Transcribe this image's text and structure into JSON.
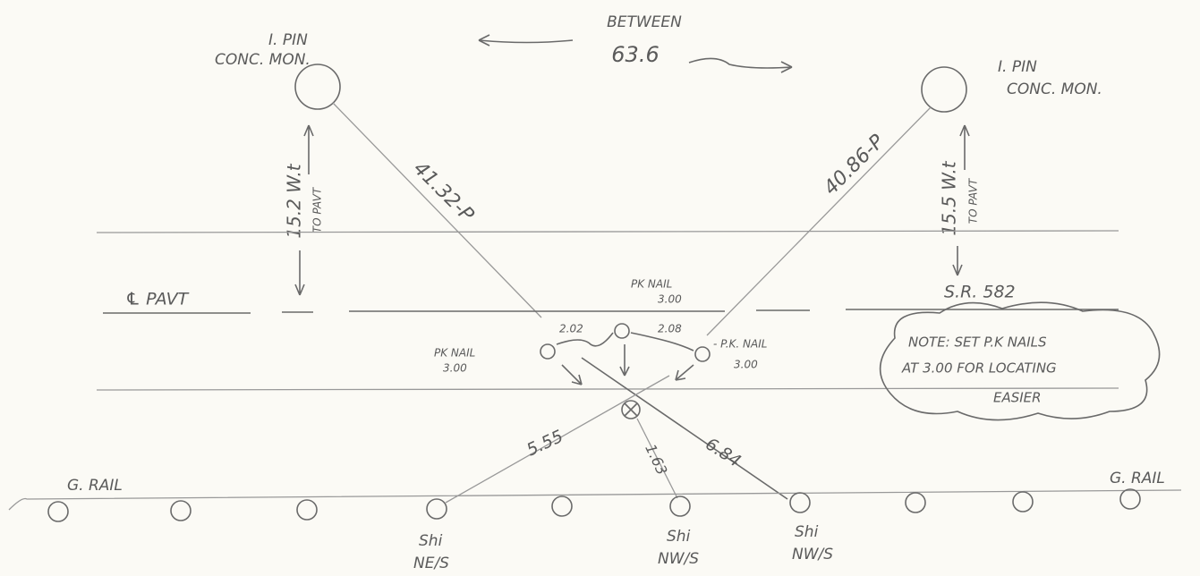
{
  "header": {
    "between": "BETWEEN",
    "distance": "63.6"
  },
  "pins": [
    {
      "line1": "I. PIN",
      "line2": "CONC. MON.",
      "offset": "15.2 W.t",
      "offset_to": "TO PAVT",
      "diagonal": "41.32-P"
    },
    {
      "line1": "I. PIN",
      "line2": "CONC. MON.",
      "offset": "15.5 W.t",
      "offset_to": "TO PAVT",
      "diagonal": "40.86-P"
    }
  ],
  "road": {
    "centerline": "℄ PAVT",
    "route": "S.R. 582"
  },
  "pk_nails": [
    {
      "label": "PK NAIL",
      "value": "3.00"
    },
    {
      "label": "PK NAIL",
      "value": "3.00"
    },
    {
      "label": "- P.K. NAIL",
      "value": "3.00"
    }
  ],
  "nail_spacing": [
    "2.02",
    "2.08"
  ],
  "note": [
    "NOTE: SET P.K NAILS",
    "AT 3.00 FOR LOCATING",
    "EASIER"
  ],
  "ties": [
    "5.55",
    "1.63",
    "6.84"
  ],
  "guard_rail": [
    "G. RAIL",
    "G. RAIL"
  ],
  "shims": [
    {
      "line1": "Shi",
      "line2": "NE/S"
    },
    {
      "line1": "Shi",
      "line2": "NW/S"
    },
    {
      "line1": "Shi",
      "line2": "NW/S"
    }
  ]
}
